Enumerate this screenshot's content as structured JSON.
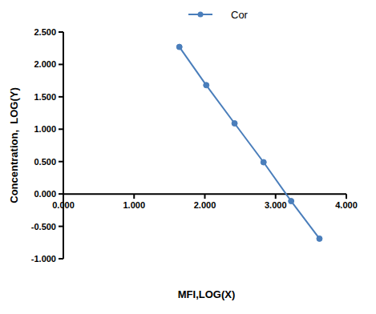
{
  "chart_data": {
    "type": "line",
    "x_label": "MFI,LOG(X)",
    "y_label": "Concentration,  LOG(Y)",
    "x": [
      1.64,
      2.02,
      2.42,
      2.83,
      3.22,
      3.62
    ],
    "series": [
      {
        "name": "Cor",
        "color": "#4a7ebb",
        "marker": "circle",
        "line_style": "solid",
        "values": [
          2.27,
          1.68,
          1.09,
          0.49,
          -0.11,
          -0.69
        ]
      }
    ],
    "xlim": [
      0,
      4
    ],
    "ylim": [
      -1,
      2.5
    ],
    "xticks": [
      {
        "value": 0,
        "label": "0.000"
      },
      {
        "value": 1,
        "label": "1.000"
      },
      {
        "value": 2,
        "label": "2.000"
      },
      {
        "value": 3,
        "label": "3.000"
      },
      {
        "value": 4,
        "label": "4.000"
      }
    ],
    "yticks": [
      {
        "value": -1,
        "label": "-1.000"
      },
      {
        "value": -0.5,
        "label": "-0.500"
      },
      {
        "value": 0,
        "label": "0.000"
      },
      {
        "value": 0.5,
        "label": "0.500"
      },
      {
        "value": 1,
        "label": "1.000"
      },
      {
        "value": 1.5,
        "label": "1.500"
      },
      {
        "value": 2,
        "label": "2.000"
      },
      {
        "value": 2.5,
        "label": "2.500"
      }
    ],
    "legend": "top",
    "grid": false
  }
}
